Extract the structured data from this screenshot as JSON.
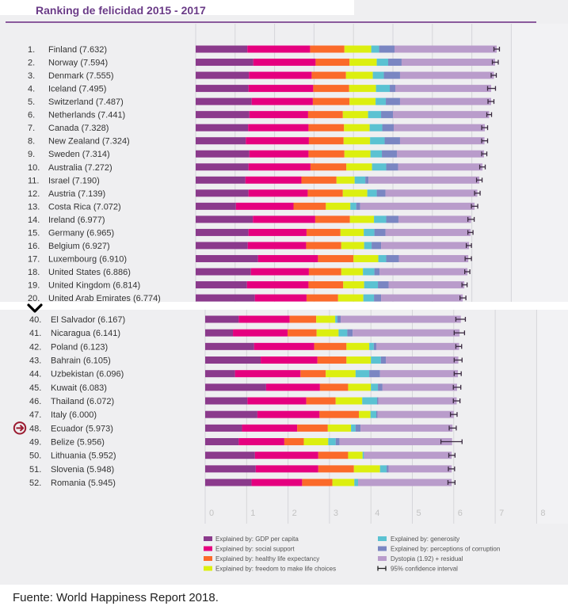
{
  "header": {
    "title": "Ranking de felicidad 2015 - 2017"
  },
  "footer": {
    "source": "Fuente: World Happiness Report 2018."
  },
  "icons": {
    "separator": "chevron-down-icon",
    "highlight": "arrow-right-circle-icon"
  },
  "colors": {
    "title": "#6a3b87",
    "rule": "#8a5a9c",
    "highlight": "#9b1b30",
    "grid": "#d6d6da",
    "tick_label": "#c2c2c2",
    "row_label": "#333333",
    "legend_text": "#555555",
    "ci": "#3a2a40"
  },
  "chart_data": {
    "type": "bar",
    "orientation": "horizontal",
    "stacked": true,
    "title": "Ranking de felicidad 2015 - 2017",
    "xlabel": "",
    "ylabel": "",
    "xlim": [
      0,
      8
    ],
    "xticks": [
      "0",
      "1",
      "2",
      "3",
      "4",
      "5",
      "6",
      "7",
      "8"
    ],
    "grid": true,
    "legend_position": "bottom",
    "series": [
      {
        "key": "gdp",
        "name": "Explained by: GDP per capita",
        "color": "#8b3a8c"
      },
      {
        "key": "social",
        "name": "Explained by: social support",
        "color": "#e5007f"
      },
      {
        "key": "health",
        "name": "Explained by: healthy life expectancy",
        "color": "#fb6a2a"
      },
      {
        "key": "freedom",
        "name": "Explained by: freedom to make life choices",
        "color": "#dcef10"
      },
      {
        "key": "generosity",
        "name": "Explained by: generosity",
        "color": "#5bc2d2"
      },
      {
        "key": "corruption",
        "name": "Explained by: perceptions of corruption",
        "color": "#7a86c2"
      },
      {
        "key": "dystopia",
        "name": "Dystopia (1.92) + residual",
        "color": "#b99ccb"
      }
    ],
    "ci_legend_label": "95% confidence interval",
    "highlight_rank": 48,
    "panels": [
      {
        "rows": [
          {
            "rank": 1,
            "rank_label": "1.",
            "label": "Finland (7.632)",
            "country": "Finland",
            "score": 7.632,
            "values": [
              1.31,
              1.59,
              0.87,
              0.68,
              0.2,
              0.39,
              2.59
            ],
            "ci": [
              7.56,
              7.7
            ]
          },
          {
            "rank": 2,
            "rank_label": "2.",
            "label": "Norway (7.594)",
            "country": "Norway",
            "score": 7.594,
            "values": [
              1.46,
              1.58,
              0.86,
              0.69,
              0.29,
              0.34,
              2.37
            ],
            "ci": [
              7.52,
              7.67
            ]
          },
          {
            "rank": 3,
            "rank_label": "3.",
            "label": "Denmark (7.555)",
            "country": "Denmark",
            "score": 7.555,
            "values": [
              1.35,
              1.59,
              0.87,
              0.68,
              0.28,
              0.41,
              2.38
            ],
            "ci": [
              7.49,
              7.62
            ]
          },
          {
            "rank": 4,
            "rank_label": "4.",
            "label": "Iceland (7.495)",
            "country": "Iceland",
            "score": 7.495,
            "values": [
              1.34,
              1.64,
              0.91,
              0.68,
              0.35,
              0.14,
              2.43
            ],
            "ci": [
              7.4,
              7.6
            ]
          },
          {
            "rank": 5,
            "rank_label": "5.",
            "label": "Switzerland (7.487)",
            "country": "Switzerland",
            "score": 7.487,
            "values": [
              1.42,
              1.55,
              0.93,
              0.66,
              0.26,
              0.36,
              2.31
            ],
            "ci": [
              7.41,
              7.56
            ]
          },
          {
            "rank": 6,
            "rank_label": "6.",
            "label": "Netherlands (7.441)",
            "country": "Netherlands",
            "score": 7.441,
            "values": [
              1.36,
              1.49,
              0.88,
              0.64,
              0.33,
              0.3,
              2.44
            ],
            "ci": [
              7.38,
              7.5
            ]
          },
          {
            "rank": 7,
            "rank_label": "7.",
            "label": "Canada (7.328)",
            "country": "Canada",
            "score": 7.328,
            "values": [
              1.33,
              1.53,
              0.9,
              0.65,
              0.32,
              0.29,
              2.31
            ],
            "ci": [
              7.25,
              7.4
            ]
          },
          {
            "rank": 8,
            "rank_label": "8.",
            "label": "New Zealand (7.324)",
            "country": "New Zealand",
            "score": 7.324,
            "values": [
              1.27,
              1.6,
              0.88,
              0.67,
              0.37,
              0.39,
              2.14
            ],
            "ci": [
              7.25,
              7.4
            ]
          },
          {
            "rank": 9,
            "rank_label": "9.",
            "label": "Sweden (7.314)",
            "country": "Sweden",
            "score": 7.314,
            "values": [
              1.36,
              1.5,
              0.91,
              0.66,
              0.29,
              0.38,
              2.21
            ],
            "ci": [
              7.25,
              7.38
            ]
          },
          {
            "rank": 10,
            "rank_label": "10.",
            "label": "Australia (7.272)",
            "country": "Australia",
            "score": 7.272,
            "values": [
              1.34,
              1.57,
              0.91,
              0.65,
              0.36,
              0.3,
              2.14
            ],
            "ci": [
              7.2,
              7.34
            ]
          },
          {
            "rank": 11,
            "rank_label": "11.",
            "label": "Israel (7.190)",
            "country": "Israel",
            "score": 7.19,
            "values": [
              1.26,
              1.42,
              0.89,
              0.46,
              0.27,
              0.08,
              2.81
            ],
            "ci": [
              7.12,
              7.26
            ]
          },
          {
            "rank": 12,
            "rank_label": "12.",
            "label": "Austria (7.139)",
            "country": "Austria",
            "score": 7.139,
            "values": [
              1.34,
              1.5,
              0.89,
              0.62,
              0.24,
              0.22,
              2.33
            ],
            "ci": [
              7.07,
              7.21
            ]
          },
          {
            "rank": 13,
            "rank_label": "13.",
            "label": "Costa Rica (7.072)",
            "country": "Costa Rica",
            "score": 7.072,
            "values": [
              1.02,
              1.46,
              0.82,
              0.62,
              0.15,
              0.1,
              2.9
            ],
            "ci": [
              6.99,
              7.15
            ]
          },
          {
            "rank": 14,
            "rank_label": "14.",
            "label": "Ireland (6.977)",
            "country": "Ireland",
            "score": 6.977,
            "values": [
              1.45,
              1.58,
              0.88,
              0.61,
              0.31,
              0.31,
              1.84
            ],
            "ci": [
              6.9,
              7.06
            ]
          },
          {
            "rank": 15,
            "rank_label": "15.",
            "label": "Germany (6.965)",
            "country": "Germany",
            "score": 6.965,
            "values": [
              1.34,
              1.47,
              0.86,
              0.59,
              0.27,
              0.28,
              2.16
            ],
            "ci": [
              6.9,
              7.03
            ]
          },
          {
            "rank": 16,
            "rank_label": "16.",
            "label": "Belgium (6.927)",
            "country": "Belgium",
            "score": 6.927,
            "values": [
              1.32,
              1.48,
              0.89,
              0.58,
              0.19,
              0.24,
              2.23
            ],
            "ci": [
              6.86,
              6.99
            ]
          },
          {
            "rank": 17,
            "rank_label": "17.",
            "label": "Luxembourg (6.910)",
            "country": "Luxembourg",
            "score": 6.91,
            "values": [
              1.58,
              1.52,
              0.9,
              0.63,
              0.2,
              0.32,
              1.76
            ],
            "ci": [
              6.83,
              6.99
            ]
          },
          {
            "rank": 18,
            "rank_label": "18.",
            "label": "United States (6.886)",
            "country": "United States",
            "score": 6.886,
            "values": [
              1.4,
              1.47,
              0.82,
              0.55,
              0.29,
              0.13,
              2.23
            ],
            "ci": [
              6.82,
              6.95
            ]
          },
          {
            "rank": 19,
            "rank_label": "19.",
            "label": "United Kingdom (6.814)",
            "country": "United Kingdom",
            "score": 6.814,
            "values": [
              1.3,
              1.56,
              0.88,
              0.53,
              0.35,
              0.27,
              1.92
            ],
            "ci": [
              6.75,
              6.88
            ]
          },
          {
            "rank": 20,
            "rank_label": "20.",
            "label": "United Arab Emirates (6.774)",
            "country": "United Arab Emirates",
            "score": 6.774,
            "values": [
              1.5,
              1.31,
              0.8,
              0.64,
              0.27,
              0.18,
              2.07
            ],
            "ci": [
              6.7,
              6.85
            ]
          }
        ]
      },
      {
        "rows": [
          {
            "rank": 40,
            "rank_label": "40.",
            "label": "El Salvador (6.167)",
            "country": "El Salvador",
            "score": 6.167,
            "values": [
              0.81,
              1.23,
              0.64,
              0.46,
              0.05,
              0.08,
              2.9
            ],
            "ci": [
              6.05,
              6.28
            ]
          },
          {
            "rank": 41,
            "rank_label": "41.",
            "label": "Nicaragua (6.141)",
            "country": "Nicaragua",
            "score": 6.141,
            "values": [
              0.67,
              1.32,
              0.7,
              0.53,
              0.21,
              0.13,
              2.58
            ],
            "ci": [
              6.01,
              6.26
            ]
          },
          {
            "rank": 42,
            "rank_label": "42.",
            "label": "Poland (6.123)",
            "country": "Poland",
            "score": 6.123,
            "values": [
              1.18,
              1.45,
              0.78,
              0.55,
              0.11,
              0.06,
              2.0
            ],
            "ci": [
              6.05,
              6.19
            ]
          },
          {
            "rank": 43,
            "rank_label": "43.",
            "label": "Bahrain (6.105)",
            "country": "Bahrain",
            "score": 6.105,
            "values": [
              1.34,
              1.37,
              0.7,
              0.59,
              0.24,
              0.12,
              1.75
            ],
            "ci": [
              6.01,
              6.2
            ]
          },
          {
            "rank": 44,
            "rank_label": "44.",
            "label": "Uzbekistan (6.096)",
            "country": "Uzbekistan",
            "score": 6.096,
            "values": [
              0.72,
              1.58,
              0.61,
              0.72,
              0.33,
              0.26,
              1.88
            ],
            "ci": [
              6.01,
              6.18
            ]
          },
          {
            "rank": 45,
            "rank_label": "45.",
            "label": "Kuwait (6.083)",
            "country": "Kuwait",
            "score": 6.083,
            "values": [
              1.47,
              1.3,
              0.68,
              0.55,
              0.17,
              0.11,
              1.8
            ],
            "ci": [
              5.99,
              6.17
            ]
          },
          {
            "rank": 46,
            "rank_label": "46.",
            "label": "Thailand (6.072)",
            "country": "Thailand",
            "score": 6.072,
            "values": [
              1.02,
              1.42,
              0.71,
              0.64,
              0.36,
              0.03,
              1.89
            ],
            "ci": [
              5.99,
              6.15
            ]
          },
          {
            "rank": 47,
            "rank_label": "47.",
            "label": "Italy (6.000)",
            "country": "Italy",
            "score": 6.0,
            "values": [
              1.26,
              1.5,
              0.95,
              0.28,
              0.14,
              0.03,
              1.84
            ],
            "ci": [
              5.92,
              6.08
            ]
          },
          {
            "rank": 48,
            "rank_label": "48.",
            "label": "Ecuador (5.973)",
            "country": "Ecuador",
            "score": 5.973,
            "values": [
              0.89,
              1.33,
              0.74,
              0.56,
              0.11,
              0.12,
              2.22
            ],
            "ci": [
              5.89,
              6.06
            ]
          },
          {
            "rank": 49,
            "rank_label": "49.",
            "label": "Belize (5.956)",
            "country": "Belize",
            "score": 5.956,
            "values": [
              0.81,
              1.1,
              0.47,
              0.59,
              0.18,
              0.09,
              2.72
            ],
            "ci": [
              5.69,
              6.2
            ]
          },
          {
            "rank": 50,
            "rank_label": "50.",
            "label": "Lithuania (5.952)",
            "country": "Lithuania",
            "score": 5.952,
            "values": [
              1.2,
              1.53,
              0.72,
              0.35,
              0.03,
              0.01,
              2.11
            ],
            "ci": [
              5.88,
              6.03
            ]
          },
          {
            "rank": 51,
            "rank_label": "51.",
            "label": "Slovenia (5.948)",
            "country": "Slovenia",
            "score": 5.948,
            "values": [
              1.22,
              1.51,
              0.86,
              0.63,
              0.16,
              0.05,
              1.52
            ],
            "ci": [
              5.87,
              6.02
            ]
          },
          {
            "rank": 52,
            "rank_label": "52.",
            "label": "Romania (5.945)",
            "country": "Romania",
            "score": 5.945,
            "values": [
              1.12,
              1.22,
              0.73,
              0.53,
              0.09,
              0.0,
              2.26
            ],
            "ci": [
              5.86,
              6.03
            ]
          }
        ]
      }
    ]
  }
}
